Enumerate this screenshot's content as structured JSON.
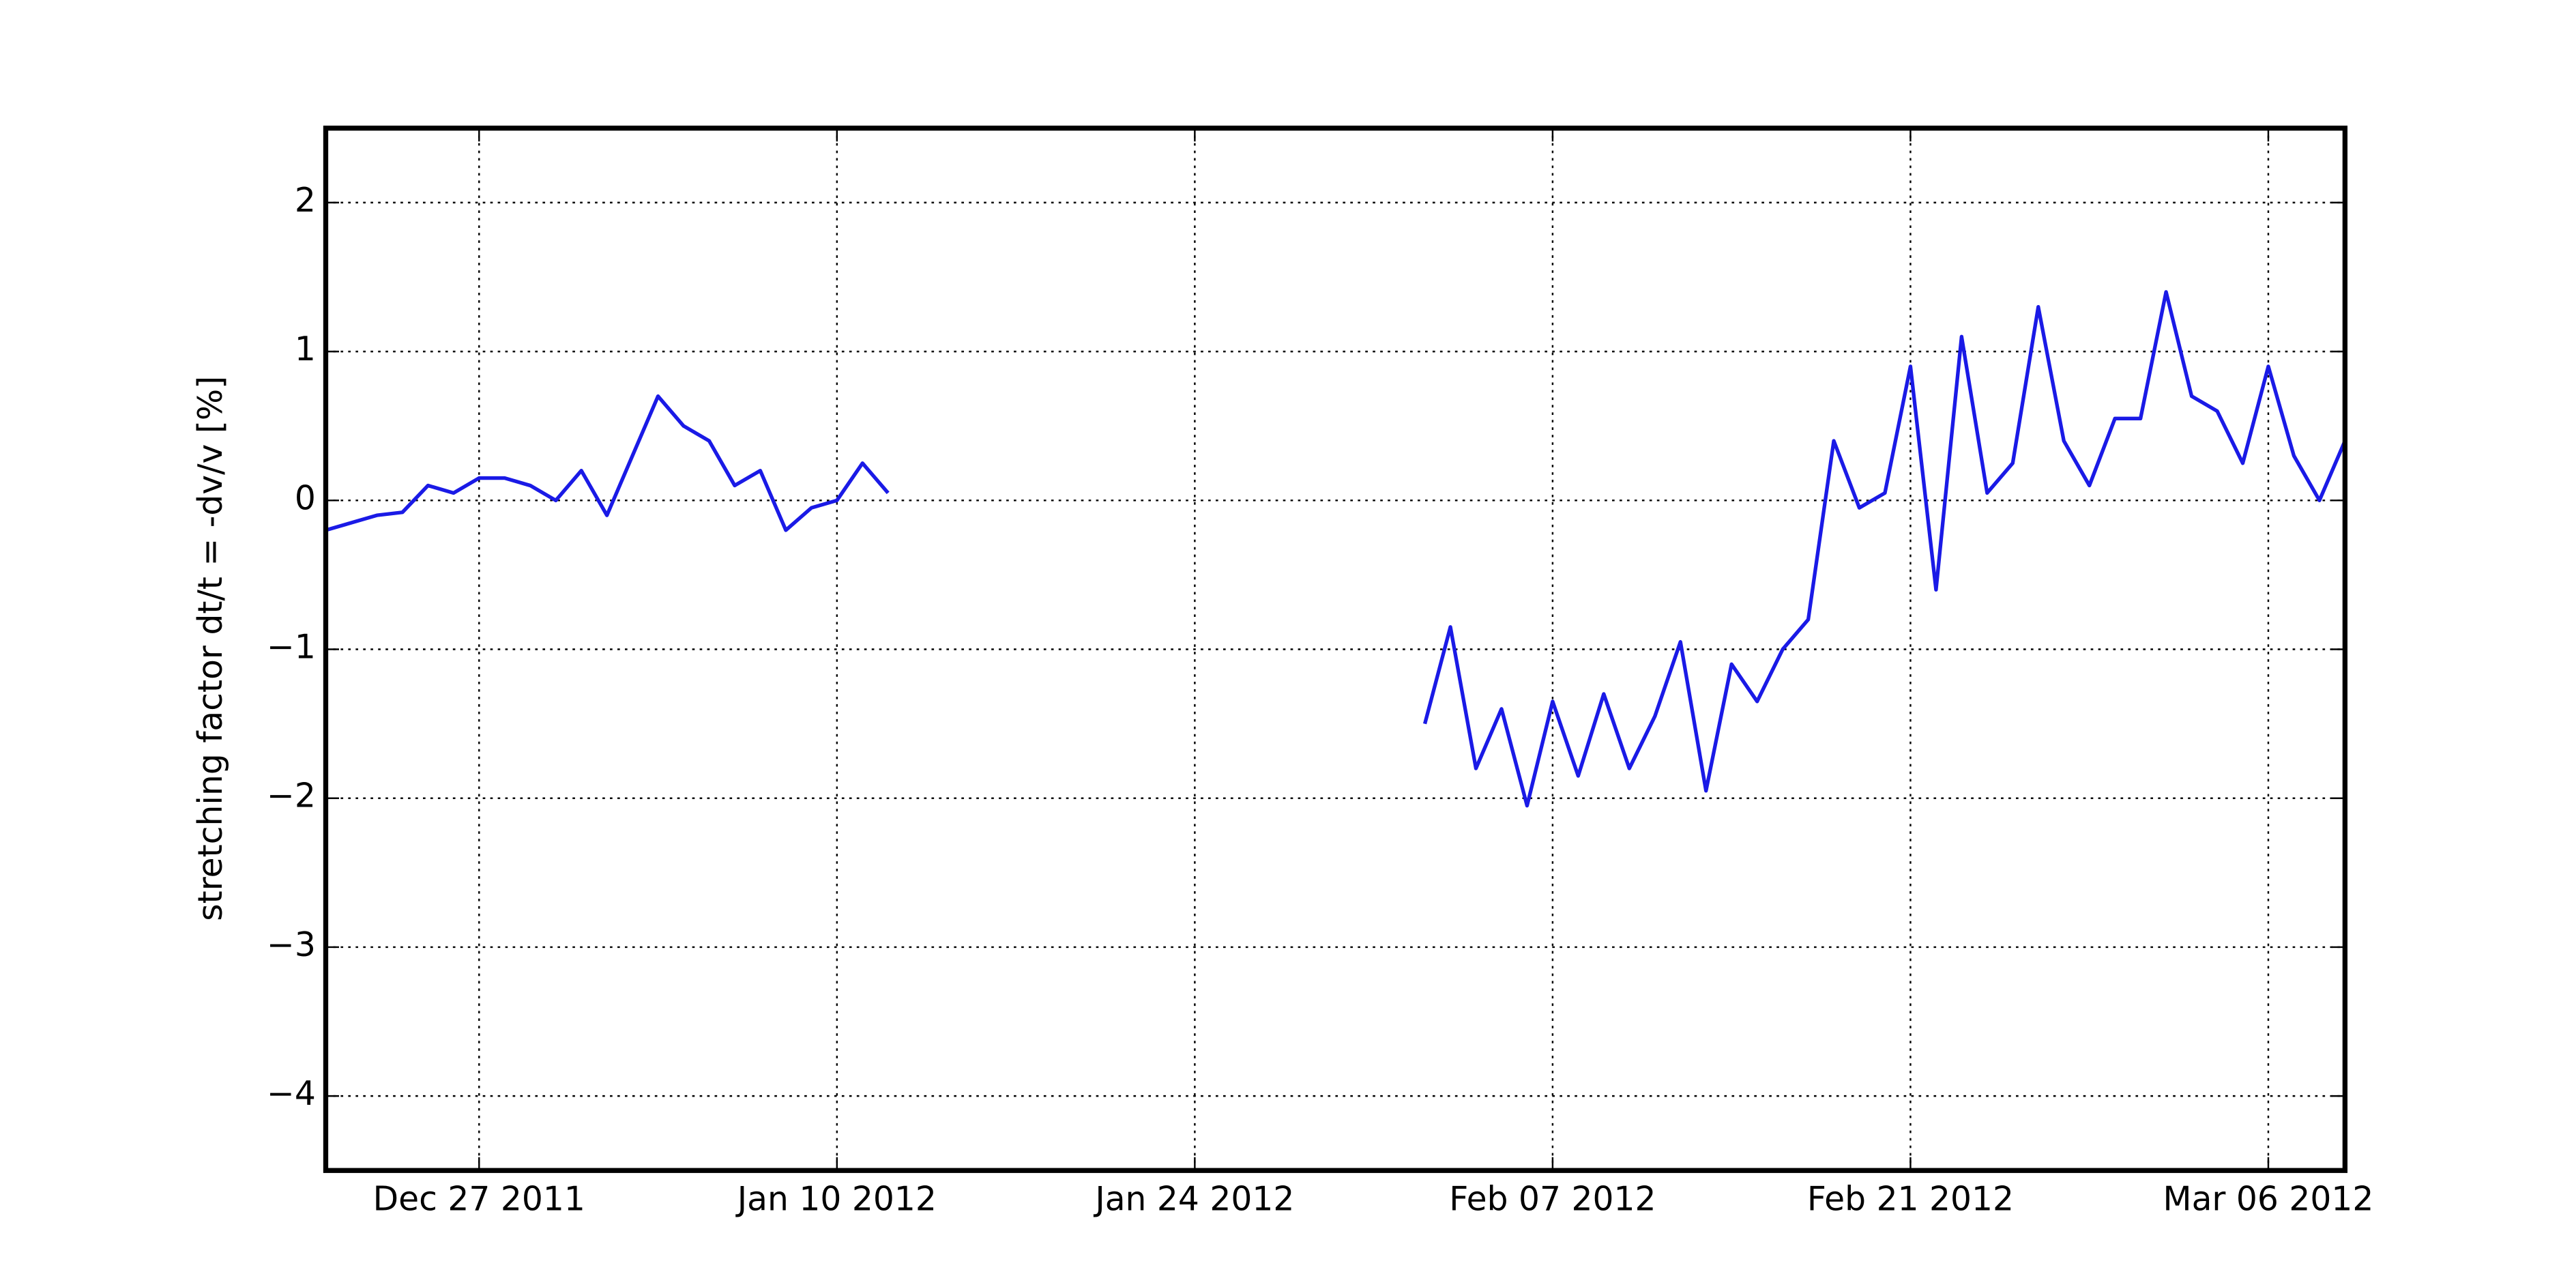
{
  "chart_data": {
    "type": "line",
    "ylabel": "stretching factor dt/t = -dv/v [%]",
    "xlim": [
      "2011-12-21",
      "2012-03-09"
    ],
    "xticks": [
      {
        "value": "2011-12-27",
        "label": "Dec 27 2011"
      },
      {
        "value": "2012-01-10",
        "label": "Jan 10 2012"
      },
      {
        "value": "2012-01-24",
        "label": "Jan 24 2012"
      },
      {
        "value": "2012-02-07",
        "label": "Feb 07 2012"
      },
      {
        "value": "2012-02-21",
        "label": "Feb 21 2012"
      },
      {
        "value": "2012-03-06",
        "label": "Mar 06 2012"
      }
    ],
    "ylim": [
      -4.5,
      2.5
    ],
    "yticks": [
      {
        "value": -4,
        "label": "−4"
      },
      {
        "value": -3,
        "label": "−3"
      },
      {
        "value": -2,
        "label": "−2"
      },
      {
        "value": -1,
        "label": "−1"
      },
      0,
      1,
      2
    ],
    "grid": true,
    "x": [
      "2011-12-21",
      "2011-12-22",
      "2011-12-23",
      "2011-12-24",
      "2011-12-25",
      "2011-12-26",
      "2011-12-27",
      "2011-12-28",
      "2011-12-29",
      "2011-12-30",
      "2011-12-31",
      "2012-01-01",
      "2012-01-02",
      "2012-01-03",
      "2012-01-04",
      "2012-01-05",
      "2012-01-06",
      "2012-01-07",
      "2012-01-08",
      "2012-01-09",
      "2012-01-10",
      "2012-01-11",
      "2012-01-12",
      "2012-01-20",
      "2012-02-02",
      "2012-02-03",
      "2012-02-04",
      "2012-02-05",
      "2012-02-06",
      "2012-02-07",
      "2012-02-08",
      "2012-02-09",
      "2012-02-10",
      "2012-02-11",
      "2012-02-12",
      "2012-02-13",
      "2012-02-14",
      "2012-02-15",
      "2012-02-16",
      "2012-02-17",
      "2012-02-18",
      "2012-02-19",
      "2012-02-20",
      "2012-02-21",
      "2012-02-22",
      "2012-02-23",
      "2012-02-24",
      "2012-02-25",
      "2012-02-26",
      "2012-02-27",
      "2012-02-28",
      "2012-02-29",
      "2012-03-01",
      "2012-03-02",
      "2012-03-03",
      "2012-03-04",
      "2012-03-05",
      "2012-03-06",
      "2012-03-07",
      "2012-03-08",
      "2012-03-09"
    ],
    "series": [
      {
        "color": "#1a1ae6",
        "values": [
          -0.2,
          -0.15,
          -0.1,
          -0.08,
          0.1,
          0.05,
          0.15,
          0.15,
          0.1,
          0.0,
          0.2,
          -0.1,
          0.3,
          0.7,
          0.5,
          0.4,
          0.1,
          0.2,
          -0.2,
          -0.05,
          0.0,
          0.25,
          0.05,
          null,
          -1.5,
          -0.85,
          -1.8,
          -1.4,
          -2.05,
          -1.35,
          -1.85,
          -1.3,
          -1.8,
          -1.45,
          -0.95,
          -1.95,
          -1.1,
          -1.35,
          -1.0,
          -0.8,
          0.4,
          -0.05,
          0.05,
          0.9,
          -0.6,
          1.1,
          0.05,
          0.25,
          1.3,
          0.4,
          0.1,
          0.55,
          0.55,
          1.4,
          0.7,
          0.6,
          0.25,
          0.9,
          0.3,
          0.0,
          0.4
        ]
      }
    ]
  }
}
